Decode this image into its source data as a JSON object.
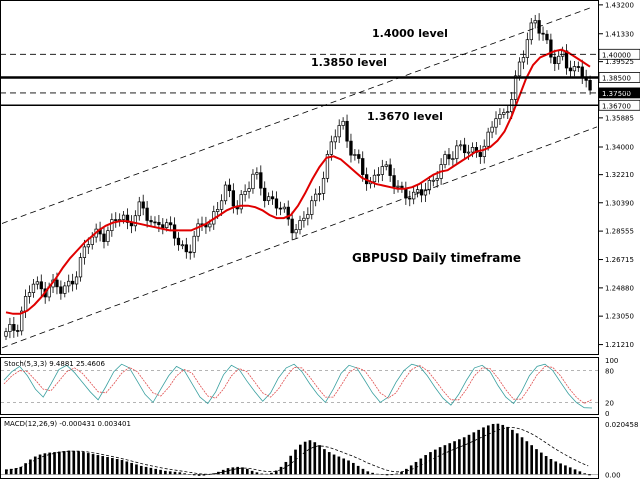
{
  "chart_data": [
    {
      "type": "candlestick",
      "annotation": "GBPUSD Daily timeframe",
      "price_axis_ticks": [
        1.432,
        1.4133,
        1.39525,
        1.3765,
        1.35885,
        1.34,
        1.3221,
        1.3039,
        1.28555,
        1.26715,
        1.2488,
        1.2305,
        1.2121
      ],
      "ylim": [
        1.206,
        1.4345
      ],
      "highlighted_prices": [
        {
          "value": 1.4,
          "label": "1.40000",
          "style": "dashed"
        },
        {
          "value": 1.385,
          "label": "1.38500",
          "style": "solid-thick"
        },
        {
          "value": 1.375,
          "label": "1.37500",
          "style": "dashed"
        },
        {
          "value": 1.367,
          "label": "1.36700",
          "style": "solid"
        }
      ],
      "current_price": 1.375,
      "level_annotations": [
        {
          "text": "1.4000 level",
          "price": 1.4
        },
        {
          "text": "1.3850 level",
          "price": 1.385
        },
        {
          "text": "1.3670 level",
          "price": 1.367
        }
      ],
      "channel": {
        "upper_start": 1.2905,
        "upper_end": 1.43,
        "lower_start": 1.21,
        "lower_end": 1.353
      },
      "ohlc_shape": [
        {
          "series": "close",
          "values": [
            1.218,
            1.221,
            1.225,
            1.236,
            1.245,
            1.251,
            1.247,
            1.248,
            1.253,
            1.249,
            1.246,
            1.248,
            1.255,
            1.262,
            1.27,
            1.278,
            1.283,
            1.286,
            1.284,
            1.287,
            1.292,
            1.296,
            1.291,
            1.295,
            1.3,
            1.297,
            1.293,
            1.29,
            1.294,
            1.288,
            1.284,
            1.281,
            1.276,
            1.272,
            1.28,
            1.285,
            1.293,
            1.291,
            1.3,
            1.305,
            1.311,
            1.307,
            1.303,
            1.31,
            1.314,
            1.32,
            1.318,
            1.31,
            1.306,
            1.302,
            1.298,
            1.295,
            1.29,
            1.287,
            1.293,
            1.298,
            1.306,
            1.316,
            1.328,
            1.34,
            1.35,
            1.356,
            1.346,
            1.336,
            1.328,
            1.32,
            1.314,
            1.324,
            1.33,
            1.323,
            1.318,
            1.315,
            1.312,
            1.31,
            1.306,
            1.309,
            1.314,
            1.318,
            1.322,
            1.326,
            1.331,
            1.336,
            1.342,
            1.34,
            1.336,
            1.333,
            1.338,
            1.344,
            1.352,
            1.36,
            1.355,
            1.366,
            1.378,
            1.392,
            1.4,
            1.412,
            1.424,
            1.418,
            1.408,
            1.397,
            1.392,
            1.402,
            1.395,
            1.388,
            1.39,
            1.384,
            1.375
          ]
        }
      ],
      "moving_average": [
        1.233,
        1.232,
        1.232,
        1.234,
        1.238,
        1.243,
        1.249,
        1.255,
        1.262,
        1.268,
        1.273,
        1.278,
        1.282,
        1.286,
        1.289,
        1.291,
        1.292,
        1.292,
        1.291,
        1.29,
        1.289,
        1.288,
        1.287,
        1.286,
        1.286,
        1.286,
        1.286,
        1.288,
        1.29,
        1.293,
        1.296,
        1.299,
        1.301,
        1.302,
        1.302,
        1.301,
        1.299,
        1.296,
        1.294,
        1.294,
        1.296,
        1.302,
        1.31,
        1.319,
        1.327,
        1.333,
        1.334,
        1.332,
        1.328,
        1.324,
        1.32,
        1.318,
        1.316,
        1.315,
        1.314,
        1.313,
        1.313,
        1.314,
        1.316,
        1.319,
        1.322,
        1.324,
        1.325,
        1.328,
        1.331,
        1.334,
        1.337,
        1.338,
        1.34,
        1.344,
        1.35,
        1.36,
        1.372,
        1.384,
        1.393,
        1.398,
        1.4,
        1.402,
        1.403,
        1.401,
        1.398,
        1.395,
        1.392
      ]
    },
    {
      "type": "line",
      "indicator": "Stoch(5,3,3)",
      "label": "Stoch(5,3,3) 9.4881 25.4606",
      "axis_ticks": [
        100,
        80,
        20,
        0
      ],
      "ylim": [
        0,
        100
      ],
      "series": [
        {
          "values": [
            62,
            78,
            88,
            70,
            45,
            30,
            55,
            82,
            90,
            76,
            58,
            40,
            25,
            50,
            78,
            92,
            85,
            60,
            35,
            20,
            45,
            70,
            88,
            80,
            55,
            30,
            18,
            40,
            72,
            90,
            82,
            60,
            40,
            22,
            38,
            66,
            85,
            92,
            78,
            55,
            35,
            20,
            45,
            75,
            90,
            85,
            62,
            38,
            20,
            30,
            58,
            80,
            92,
            88,
            70,
            48,
            28,
            15,
            35,
            62,
            85,
            90,
            78,
            52,
            30,
            18,
            40,
            70,
            88,
            92,
            80,
            58,
            36,
            20,
            10,
            9.4881
          ]
        },
        {
          "values": [
            55,
            70,
            80,
            78,
            62,
            45,
            42,
            60,
            78,
            85,
            75,
            58,
            40,
            38,
            55,
            75,
            86,
            78,
            58,
            38,
            32,
            48,
            70,
            82,
            75,
            52,
            32,
            28,
            45,
            70,
            84,
            78,
            58,
            38,
            30,
            45,
            68,
            86,
            85,
            68,
            48,
            30,
            30,
            52,
            76,
            86,
            80,
            60,
            38,
            28,
            38,
            62,
            82,
            90,
            80,
            62,
            42,
            25,
            25,
            45,
            70,
            85,
            84,
            66,
            44,
            26,
            26,
            48,
            72,
            88,
            86,
            70,
            48,
            30,
            18,
            25.4606
          ]
        }
      ]
    },
    {
      "type": "bar",
      "indicator": "MACD(12,26,9)",
      "label": "MACD(12,26,9) -0.000431 0.003401",
      "axis_ticks": [
        0.020458,
        0.0
      ],
      "ylim": [
        -0.0015,
        0.022
      ],
      "values": [
        0.002,
        0.0022,
        0.0025,
        0.003,
        0.0045,
        0.006,
        0.0072,
        0.008,
        0.0085,
        0.0088,
        0.009,
        0.0092,
        0.0094,
        0.0096,
        0.0095,
        0.0093,
        0.009,
        0.0086,
        0.0082,
        0.0078,
        0.0074,
        0.007,
        0.0066,
        0.0062,
        0.0058,
        0.0052,
        0.0046,
        0.004,
        0.0034,
        0.003,
        0.0026,
        0.0022,
        0.0018,
        0.0014,
        0.0012,
        0.001,
        0.0008,
        0.0004,
        0.0001,
        -0.0004,
        -0.0006,
        -0.0005,
        -0.0002,
        0.0004,
        0.001,
        0.0018,
        0.0025,
        0.0028,
        0.003,
        0.0028,
        0.0022,
        0.0014,
        0.0008,
        0.0003,
        0.0002,
        0.0006,
        0.0015,
        0.003,
        0.005,
        0.0075,
        0.01,
        0.012,
        0.0132,
        0.0138,
        0.013,
        0.0118,
        0.0102,
        0.009,
        0.008,
        0.0072,
        0.0064,
        0.0056,
        0.0046,
        0.0034,
        0.0022,
        0.0012,
        0.0006,
        0.0002,
        -0.0002,
        -0.0004,
        -0.0003,
        0.0003,
        0.001,
        0.0022,
        0.0036,
        0.005,
        0.0064,
        0.0078,
        0.009,
        0.01,
        0.011,
        0.0118,
        0.0126,
        0.0134,
        0.0142,
        0.015,
        0.016,
        0.017,
        0.018,
        0.019,
        0.0198,
        0.0204,
        0.0205,
        0.02,
        0.0192,
        0.018,
        0.0166,
        0.015,
        0.0134,
        0.0118,
        0.0102,
        0.0088,
        0.0074,
        0.0062,
        0.0052,
        0.0044,
        0.0036,
        0.0028,
        0.002,
        0.0012,
        0.0004,
        -0.0004
      ],
      "signal": [
        0.0015,
        0.0018,
        0.0022,
        0.0026,
        0.0034,
        0.0044,
        0.0055,
        0.0065,
        0.0073,
        0.0079,
        0.0084,
        0.0088,
        0.0091,
        0.0093,
        0.0094,
        0.0094,
        0.0093,
        0.0091,
        0.0088,
        0.0085,
        0.0081,
        0.0077,
        0.0073,
        0.0069,
        0.0065,
        0.006,
        0.0055,
        0.005,
        0.0045,
        0.004,
        0.0036,
        0.0032,
        0.0028,
        0.0024,
        0.0021,
        0.0018,
        0.0015,
        0.0012,
        0.0009,
        0.0006,
        0.0003,
        0.0001,
        0.0,
        0.0001,
        0.0004,
        0.0008,
        0.0013,
        0.0018,
        0.0022,
        0.0025,
        0.0025,
        0.0023,
        0.0019,
        0.0015,
        0.0012,
        0.0011,
        0.0012,
        0.0017,
        0.0026,
        0.0038,
        0.0054,
        0.007,
        0.0086,
        0.01,
        0.011,
        0.0115,
        0.0114,
        0.011,
        0.0104,
        0.0097,
        0.009,
        0.0082,
        0.0075,
        0.0066,
        0.0058,
        0.0048,
        0.004,
        0.0032,
        0.0025,
        0.0018,
        0.0013,
        0.001,
        0.001,
        0.0012,
        0.0017,
        0.0025,
        0.0034,
        0.0044,
        0.0054,
        0.0064,
        0.0074,
        0.0083,
        0.0092,
        0.01,
        0.0108,
        0.0116,
        0.0124,
        0.0133,
        0.0142,
        0.0151,
        0.016,
        0.0169,
        0.0177,
        0.0184,
        0.0188,
        0.019,
        0.0188,
        0.0183,
        0.0176,
        0.0167,
        0.0156,
        0.0144,
        0.0131,
        0.0118,
        0.0105,
        0.0093,
        0.0082,
        0.0071,
        0.0061,
        0.0051,
        0.0042,
        0.0034
      ]
    }
  ],
  "colors": {
    "background": "#ffffff",
    "candle": "#000000",
    "moving_average": "#e00000",
    "stoch_main": "#3aa0a0",
    "stoch_signal": "#e05050",
    "macd_bar": "#000000",
    "signal_line": "#000000",
    "current_price_box": "#000000",
    "current_price_text": "#ffffff"
  }
}
